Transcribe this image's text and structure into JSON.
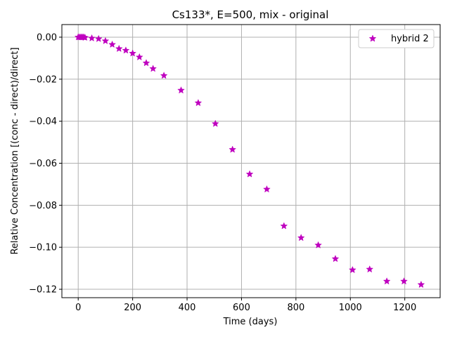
{
  "chart_data": {
    "type": "scatter",
    "title": "Cs133*, E=500, mix - original",
    "xlabel": "Time (days)",
    "ylabel": "Relative Concentration [(conc - direct)/direct]",
    "xlim": [
      -60,
      1330
    ],
    "ylim": [
      -0.124,
      0.006
    ],
    "xticks": [
      0,
      200,
      400,
      600,
      800,
      1000,
      1200
    ],
    "xtick_labels": [
      "0",
      "200",
      "400",
      "600",
      "800",
      "1000",
      "1200"
    ],
    "yticks": [
      0.0,
      -0.02,
      -0.04,
      -0.06,
      -0.08,
      -0.1,
      -0.12
    ],
    "ytick_labels": [
      "0.00",
      "−0.02",
      "−0.04",
      "−0.06",
      "−0.08",
      "−0.10",
      "−0.12"
    ],
    "grid": true,
    "legend_position": "top-right",
    "series": [
      {
        "name": "hybrid 2",
        "color": "#bf00bf",
        "marker": "star",
        "x": [
          0,
          5,
          10,
          15,
          20,
          25,
          50,
          75,
          100,
          125,
          150,
          175,
          200,
          225,
          250,
          275,
          315,
          378,
          441,
          504,
          567,
          630,
          693,
          756,
          819,
          882,
          945,
          1008,
          1071,
          1134,
          1197,
          1260
        ],
        "y": [
          0.0,
          0.0,
          0.0,
          0.0,
          0.0,
          -0.0002,
          -0.0005,
          -0.0008,
          -0.0018,
          -0.0035,
          -0.0055,
          -0.0063,
          -0.0077,
          -0.0095,
          -0.0123,
          -0.015,
          -0.0183,
          -0.0253,
          -0.0313,
          -0.0412,
          -0.0535,
          -0.0652,
          -0.0724,
          -0.0899,
          -0.0955,
          -0.099,
          -0.1055,
          -0.1108,
          -0.1105,
          -0.1162,
          -0.1162,
          -0.1178
        ]
      }
    ]
  }
}
